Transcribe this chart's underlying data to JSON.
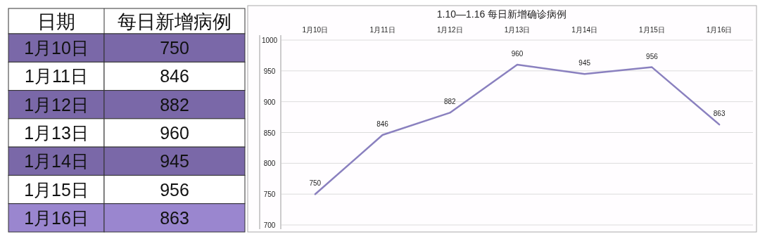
{
  "chart_data": [
    {
      "type": "other",
      "categories": [
        "1月10日",
        "1月11日",
        "1月12日",
        "1月13日",
        "1月14日",
        "1月15日",
        "1月16日"
      ],
      "values": [
        750,
        846,
        882,
        960,
        945,
        956,
        863
      ],
      "colors": [
        "#7a68a8",
        "#ffffff",
        "#7a68a8",
        "#ffffff",
        "#7a68a8",
        "#ffffff",
        "#9a86cf"
      ],
      "data_labels": true,
      "annotations": [
        "日期",
        "每日新增病例"
      ]
    },
    {
      "type": "line",
      "title": "1.10—1.16 每日新增确诊病例",
      "categories": [
        "1月10日",
        "1月11日",
        "1月12日",
        "1月13日",
        "1月14日",
        "1月15日",
        "1月16日"
      ],
      "values": [
        750,
        846,
        882,
        960,
        945,
        956,
        863
      ],
      "color": "#8a80bf",
      "ylim": [
        700,
        1000
      ],
      "yticks": [
        700,
        750,
        800,
        850,
        900,
        950,
        1000
      ],
      "grid": "y",
      "data_labels": true
    }
  ]
}
